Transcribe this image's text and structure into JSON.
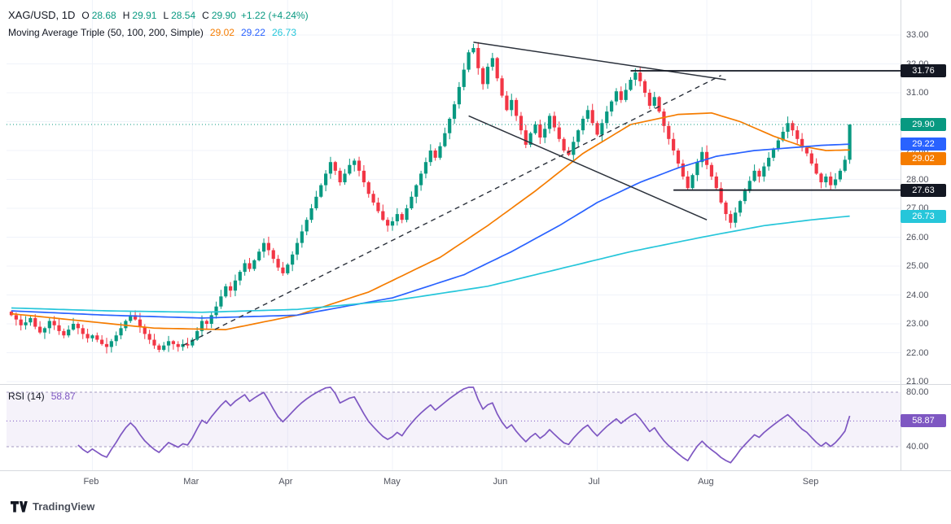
{
  "header": {
    "title": "XAG/USD, 1D",
    "ohlc": {
      "o_label": "O",
      "o": "28.68",
      "h_label": "H",
      "h": "29.91",
      "l_label": "L",
      "l": "28.54",
      "c_label": "C",
      "c": "29.90"
    },
    "change": "+1.22 (+4.24%)"
  },
  "indicators": {
    "ma": {
      "label": "Moving Average Triple (50, 100, 200, Simple)",
      "values": [
        {
          "text": "29.02",
          "color": "#F57C00"
        },
        {
          "text": "29.22",
          "color": "#2962FF"
        },
        {
          "text": "26.73",
          "color": "#26C6DA"
        }
      ]
    },
    "rsi": {
      "label": "RSI (14)",
      "value": "58.87",
      "color": "#7E57C2"
    }
  },
  "colors": {
    "up": "#089981",
    "down": "#F23645",
    "grid": "#F0F3FA",
    "axis_text": "#50535E",
    "drawing": "#2B313B",
    "level": "#131722",
    "separator": "#D6D9DE",
    "rsi_line": "#7E57C2",
    "rsi_band_fill": "rgba(126,87,194,0.08)",
    "rsi_band_line": "#A49BC0",
    "current_price": "#089981",
    "background": "#FFFFFF"
  },
  "axis": {
    "price_ticks": [
      "33.00",
      "32.00",
      "31.00",
      "30.00",
      "29.00",
      "28.00",
      "27.00",
      "26.00",
      "25.00",
      "24.00",
      "23.00",
      "22.00",
      "21.00"
    ],
    "rsi_ticks": [
      {
        "text": "80.00",
        "value": 80
      },
      {
        "text": "40.00",
        "value": 40
      }
    ],
    "tags": [
      {
        "text": "31.76",
        "value": 31.76,
        "bg": "#131722",
        "panel": "price"
      },
      {
        "text": "29.90",
        "value": 29.9,
        "bg": "#089981",
        "panel": "price"
      },
      {
        "text": "29.22",
        "value": 29.22,
        "bg": "#2962FF",
        "panel": "price"
      },
      {
        "text": "29.02",
        "value": 29.02,
        "bg": "#F57C00",
        "panel": "price"
      },
      {
        "text": "27.63",
        "value": 27.63,
        "bg": "#131722",
        "panel": "price"
      },
      {
        "text": "26.73",
        "value": 26.73,
        "bg": "#26C6DA",
        "panel": "price"
      },
      {
        "text": "58.87",
        "value": 58.87,
        "bg": "#7E57C2",
        "panel": "rsi"
      }
    ]
  },
  "logo": {
    "text": "TradingView"
  },
  "chart_data": {
    "type": "candlestick",
    "title": "XAG/USD, 1D",
    "price_axis_range": [
      21,
      33
    ],
    "grid": true,
    "months": [
      {
        "label": "Feb",
        "index": 17
      },
      {
        "label": "Mar",
        "index": 38
      },
      {
        "label": "Apr",
        "index": 58
      },
      {
        "label": "May",
        "index": 80
      },
      {
        "label": "Jun",
        "index": 103
      },
      {
        "label": "Jul",
        "index": 123
      },
      {
        "label": "Aug",
        "index": 146
      },
      {
        "label": "Sep",
        "index": 168
      }
    ],
    "closes": [
      23.3,
      23.15,
      22.95,
      23.05,
      23.2,
      22.9,
      22.7,
      22.85,
      23.1,
      22.95,
      22.75,
      22.6,
      22.8,
      23.0,
      22.85,
      22.65,
      22.5,
      22.6,
      22.45,
      22.3,
      22.2,
      22.4,
      22.6,
      22.85,
      23.1,
      23.3,
      23.15,
      22.9,
      22.65,
      22.45,
      22.25,
      22.1,
      22.25,
      22.4,
      22.3,
      22.2,
      22.3,
      22.25,
      22.45,
      22.75,
      23.1,
      23.0,
      23.3,
      23.6,
      23.95,
      24.3,
      24.15,
      24.5,
      24.8,
      25.1,
      24.9,
      25.2,
      25.5,
      25.8,
      25.55,
      25.25,
      24.95,
      24.75,
      25.05,
      25.4,
      25.8,
      26.2,
      26.6,
      27.0,
      27.4,
      27.8,
      28.2,
      28.6,
      28.3,
      27.9,
      28.2,
      28.5,
      28.65,
      28.3,
      27.9,
      27.5,
      27.2,
      26.9,
      26.6,
      26.4,
      26.55,
      26.8,
      26.6,
      27.0,
      27.4,
      27.8,
      28.2,
      28.6,
      29.0,
      28.75,
      29.15,
      29.6,
      30.1,
      30.6,
      31.2,
      31.8,
      32.4,
      32.55,
      31.85,
      31.3,
      31.9,
      32.2,
      31.5,
      30.9,
      30.4,
      30.75,
      30.2,
      29.7,
      29.2,
      29.6,
      29.9,
      29.45,
      29.75,
      30.2,
      29.8,
      29.4,
      29.0,
      28.85,
      29.3,
      29.7,
      30.1,
      30.4,
      29.95,
      29.55,
      29.95,
      30.35,
      30.7,
      31.05,
      30.75,
      31.1,
      31.45,
      31.7,
      31.4,
      31.0,
      30.55,
      30.85,
      30.35,
      29.85,
      29.4,
      29.0,
      28.55,
      28.1,
      27.7,
      28.15,
      28.6,
      28.95,
      28.5,
      28.1,
      27.7,
      27.2,
      26.8,
      26.5,
      26.85,
      27.25,
      27.6,
      27.95,
      28.3,
      28.1,
      28.45,
      28.75,
      29.05,
      29.35,
      29.65,
      29.95,
      29.7,
      29.4,
      29.1,
      28.9,
      28.55,
      28.2,
      27.9,
      28.1,
      27.8,
      28.0,
      28.3,
      28.68,
      29.9
    ],
    "last_candle": {
      "open": 28.68,
      "high": 29.91,
      "low": 28.54,
      "close": 29.9
    },
    "moving_averages": [
      {
        "name": "SMA 50",
        "period": 50,
        "current": 29.02,
        "color": "#F57C00",
        "points": [
          [
            0,
            23.35
          ],
          [
            15,
            23.1
          ],
          [
            30,
            22.85
          ],
          [
            45,
            22.8
          ],
          [
            60,
            23.3
          ],
          [
            75,
            24.1
          ],
          [
            90,
            25.3
          ],
          [
            100,
            26.4
          ],
          [
            110,
            27.6
          ],
          [
            120,
            28.9
          ],
          [
            130,
            29.9
          ],
          [
            140,
            30.25
          ],
          [
            147,
            30.3
          ],
          [
            153,
            30.0
          ],
          [
            160,
            29.5
          ],
          [
            166,
            29.15
          ],
          [
            171,
            29.0
          ],
          [
            176,
            29.02
          ]
        ]
      },
      {
        "name": "SMA 100",
        "period": 100,
        "current": 29.22,
        "color": "#2962FF",
        "points": [
          [
            0,
            23.45
          ],
          [
            20,
            23.3
          ],
          [
            40,
            23.2
          ],
          [
            60,
            23.3
          ],
          [
            80,
            23.9
          ],
          [
            95,
            24.7
          ],
          [
            105,
            25.5
          ],
          [
            115,
            26.4
          ],
          [
            123,
            27.2
          ],
          [
            132,
            27.9
          ],
          [
            140,
            28.4
          ],
          [
            148,
            28.8
          ],
          [
            156,
            29.0
          ],
          [
            164,
            29.1
          ],
          [
            170,
            29.18
          ],
          [
            176,
            29.22
          ]
        ]
      },
      {
        "name": "SMA 200",
        "period": 200,
        "current": 26.73,
        "color": "#26C6DA",
        "points": [
          [
            0,
            23.55
          ],
          [
            20,
            23.45
          ],
          [
            40,
            23.4
          ],
          [
            60,
            23.5
          ],
          [
            80,
            23.8
          ],
          [
            100,
            24.3
          ],
          [
            115,
            24.9
          ],
          [
            130,
            25.5
          ],
          [
            145,
            26.0
          ],
          [
            158,
            26.4
          ],
          [
            168,
            26.6
          ],
          [
            176,
            26.73
          ]
        ]
      }
    ],
    "drawings": {
      "ascending_dashed_trendline": {
        "from": [
          36,
          22.25
        ],
        "to": [
          149,
          31.6
        ]
      },
      "descending_upper_trendline": {
        "from": [
          97,
          32.75
        ],
        "to": [
          150,
          31.45
        ]
      },
      "descending_lower_trendline": {
        "from": [
          96,
          30.2
        ],
        "to": [
          146,
          26.6
        ]
      },
      "horizontal_levels": [
        {
          "value": 31.76,
          "from_index": 130
        },
        {
          "value": 27.63,
          "from_index": 139
        }
      ]
    },
    "current_price": 29.9,
    "rsi": {
      "period": 14,
      "current": 58.87,
      "upper_band": 80,
      "lower_band": 40
    }
  }
}
